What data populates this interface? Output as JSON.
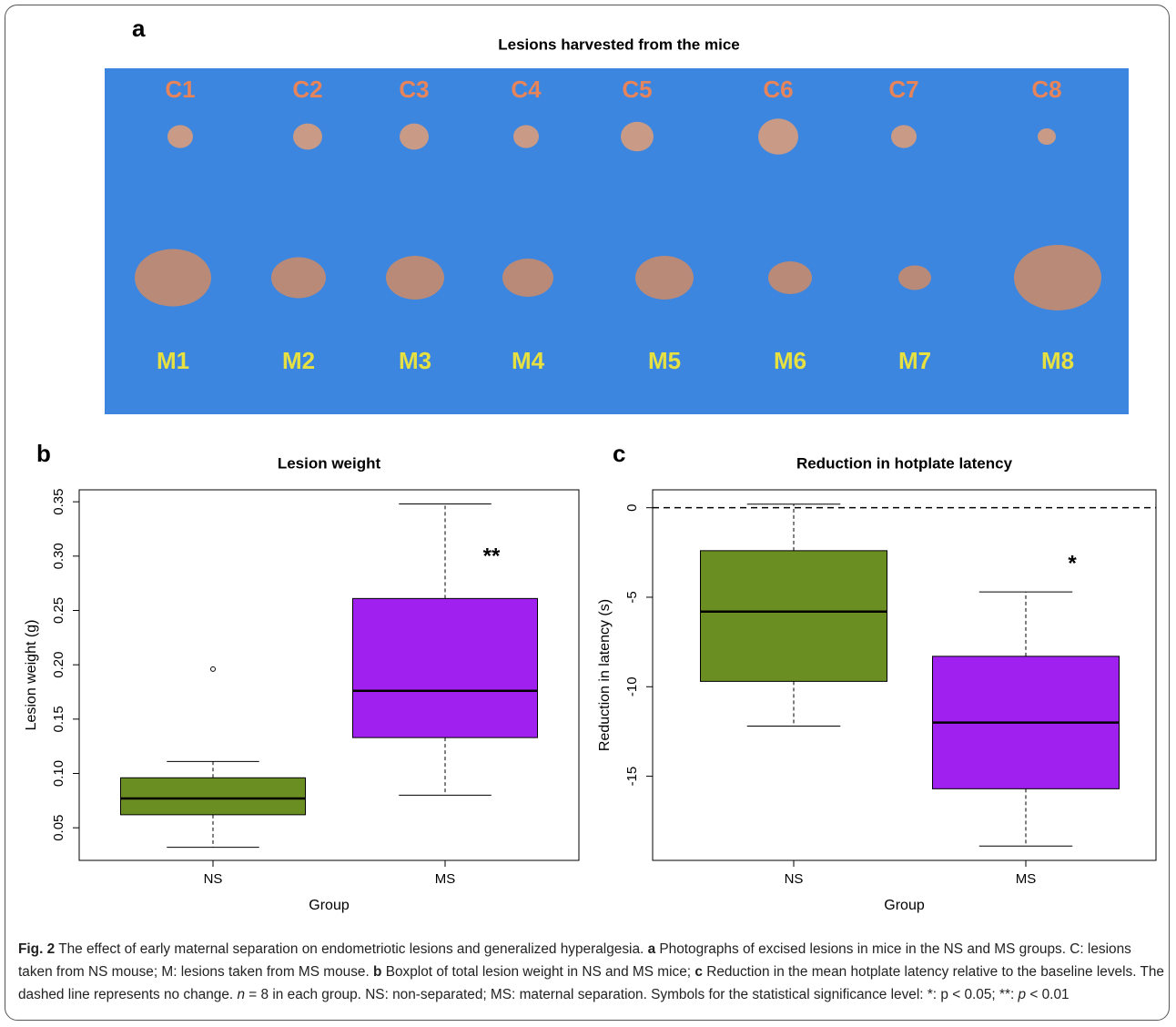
{
  "panel_a": {
    "letter": "a",
    "title": "Lesions harvested from the mice",
    "top_labels": [
      "C1",
      "C2",
      "C3",
      "C4",
      "C5",
      "C6",
      "C7",
      "C8"
    ],
    "bottom_labels": [
      "M1",
      "M2",
      "M3",
      "M4",
      "M5",
      "M6",
      "M7",
      "M8"
    ]
  },
  "chart_data": [
    {
      "type": "boxplot",
      "letter": "b",
      "title": "Lesion weight",
      "xlabel": "Group",
      "ylabel": "Lesion weight (g)",
      "categories": [
        "NS",
        "MS"
      ],
      "colors": [
        "#6b8e23",
        "#a020f0"
      ],
      "boxes": [
        {
          "whislo": 0.032,
          "q1": 0.062,
          "med": 0.077,
          "q3": 0.096,
          "whishi": 0.111,
          "fliers": [
            0.196
          ]
        },
        {
          "whislo": 0.08,
          "q1": 0.133,
          "med": 0.176,
          "q3": 0.261,
          "whishi": 0.348,
          "fliers": []
        }
      ],
      "ylim": [
        0.02,
        0.361
      ],
      "yticks": [
        0.05,
        {
          "value": 0.1,
          "label": "0.10"
        },
        0.15,
        {
          "value": 0.2,
          "label": "0.20"
        },
        0.25,
        {
          "value": 0.3,
          "label": "0.30"
        },
        0.35
      ],
      "annotation": "**"
    },
    {
      "type": "boxplot",
      "letter": "c",
      "title": "Reduction in hotplate latency",
      "xlabel": "Group",
      "ylabel": "Reduction in latency (s)",
      "categories": [
        "NS",
        "MS"
      ],
      "colors": [
        "#6b8e23",
        "#a020f0"
      ],
      "boxes": [
        {
          "whislo": -12.2,
          "q1": -9.7,
          "med": -5.8,
          "q3": -2.4,
          "whishi": 0.2,
          "fliers": []
        },
        {
          "whislo": -18.9,
          "q1": -15.7,
          "med": -12.0,
          "q3": -8.3,
          "whishi": -4.7,
          "fliers": []
        }
      ],
      "ylim": [
        -19.7,
        1.0
      ],
      "yticks": [
        0,
        -5,
        -10,
        -15
      ],
      "reference_line": 0,
      "annotation": "*"
    }
  ],
  "caption": [
    "Fig. 2",
    " The effect of early maternal separation on endometriotic lesions and generalized hyperalgesia. ",
    "a",
    " Photographs of excised lesions in mice in the NS and MS groups. C: lesions taken from NS mouse; M: lesions taken from MS mouse. ",
    "b",
    " Boxplot of total lesion weight in NS and MS mice; ",
    "c",
    " Reduction in the mean hotplate latency relative to the baseline levels. The dashed line represents no change. ",
    "n",
    " = 8 in each group. NS: non-separated; MS: maternal separation. Symbols for the statistical significance level: *: p < 0.05; **: ",
    "p",
    " < 0.01"
  ]
}
